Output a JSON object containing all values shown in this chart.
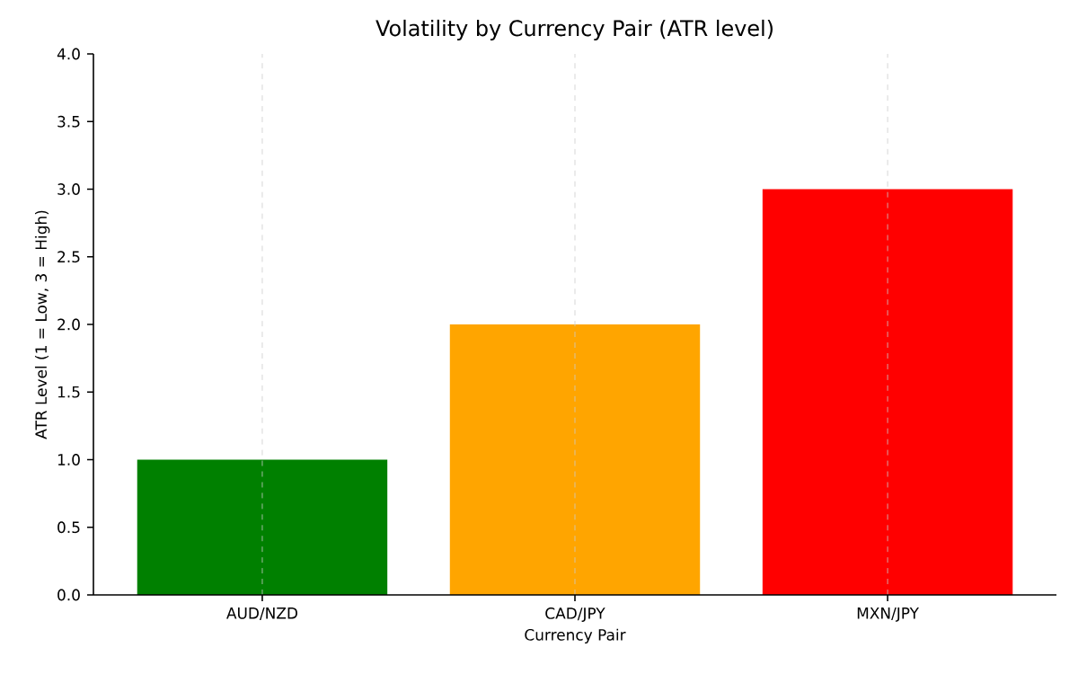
{
  "chart_data": {
    "type": "bar",
    "title": "Volatility by Currency Pair (ATR level)",
    "xlabel": "Currency Pair",
    "ylabel": "ATR Level (1 = Low, 3 = High)",
    "categories": [
      "AUD/NZD",
      "CAD/JPY",
      "MXN/JPY"
    ],
    "values": [
      1,
      2,
      3
    ],
    "colors": [
      "#008000",
      "#ffa500",
      "#ff0000"
    ],
    "ylim": [
      0,
      4
    ],
    "yticks": [
      {
        "value": 0,
        "label": "0.0"
      },
      {
        "value": 0.5,
        "label": "0.5"
      },
      {
        "value": 1,
        "label": "1.0"
      },
      {
        "value": 1.5,
        "label": "1.5"
      },
      {
        "value": 2,
        "label": "2.0"
      },
      {
        "value": 2.5,
        "label": "2.5"
      },
      {
        "value": 3,
        "label": "3.0"
      },
      {
        "value": 3.5,
        "label": "3.5"
      },
      {
        "value": 4,
        "label": "4.0"
      }
    ],
    "grid": "x"
  }
}
